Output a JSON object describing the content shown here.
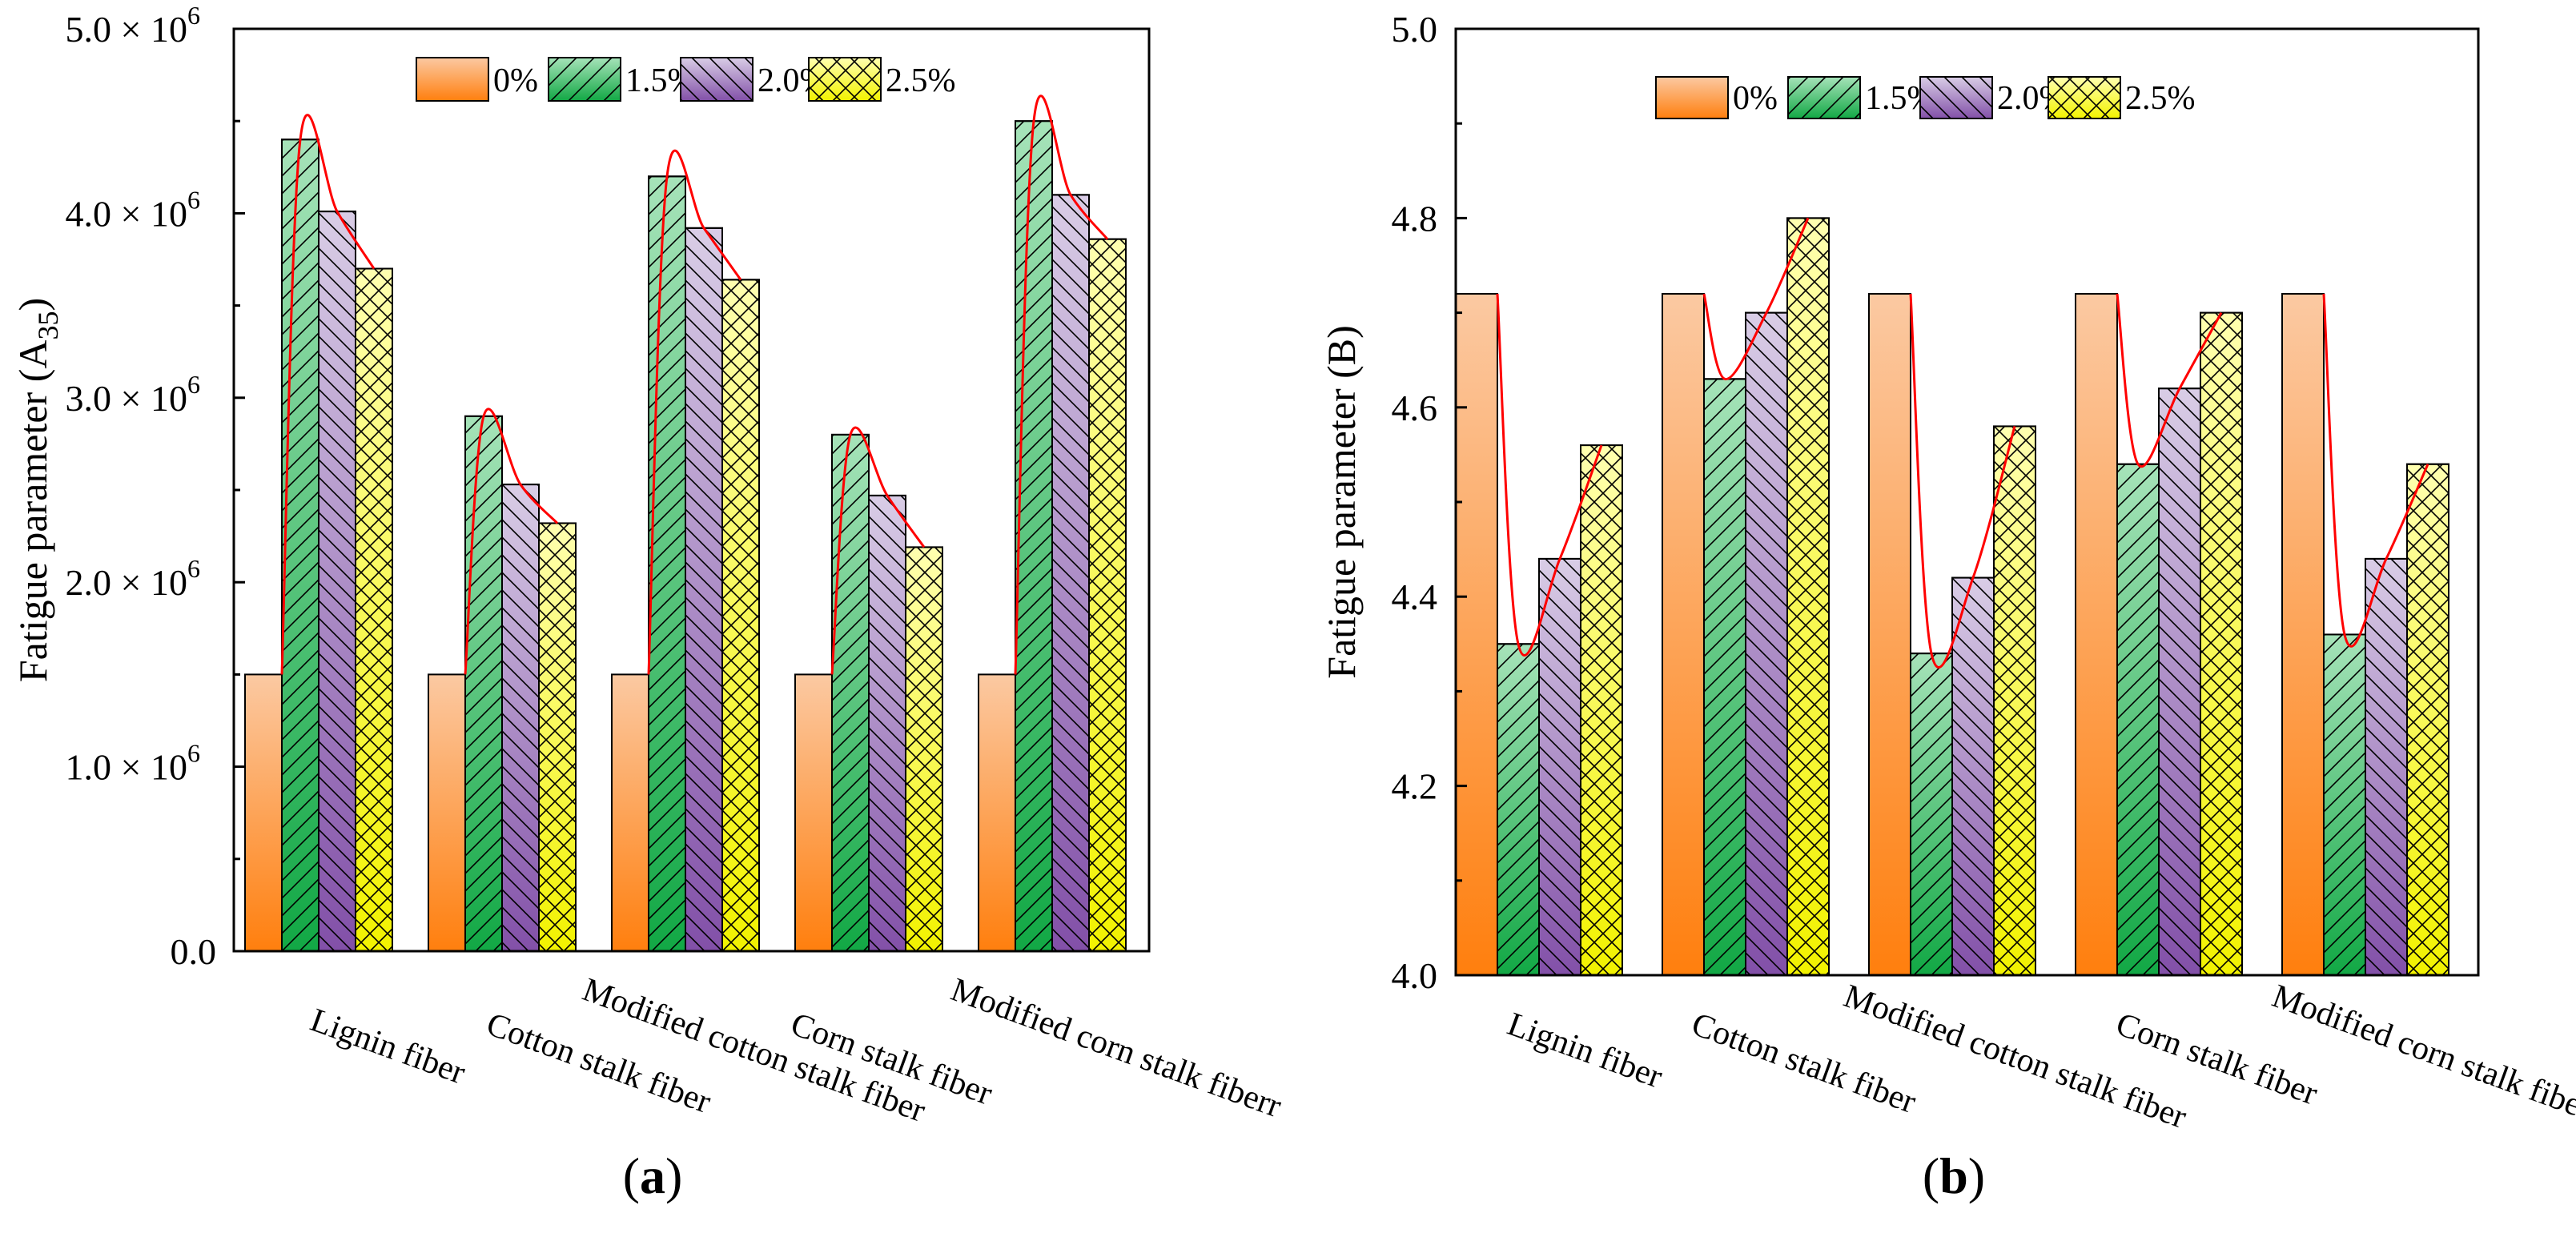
{
  "chart_data": [
    {
      "type": "bar",
      "panel_label": "(a)",
      "panel_letter": "a",
      "ylabel": "Fatigue parameter (A35)",
      "ylabel_main": "Fatigue parameter (A",
      "ylabel_sub": "35",
      "ylabel_close": ")",
      "ylim": [
        0,
        5000000
      ],
      "yticks": [
        {
          "value": 0,
          "label": "0.0"
        },
        {
          "value": 1000000,
          "label": "1.0 × 10",
          "exp": "6"
        },
        {
          "value": 2000000,
          "label": "2.0 × 10",
          "exp": "6"
        },
        {
          "value": 3000000,
          "label": "3.0 × 10",
          "exp": "6"
        },
        {
          "value": 4000000,
          "label": "4.0 × 10",
          "exp": "6"
        },
        {
          "value": 5000000,
          "label": "5.0 × 10",
          "exp": "6"
        }
      ],
      "categories": [
        "Lignin fiber",
        "Cotton stalk fiber",
        "Modified cotton stalk fiber",
        "Corn stalk fiber",
        "Modified corn stalk fiberr"
      ],
      "series": [
        {
          "name": "0%",
          "values": [
            1500000,
            1500000,
            1500000,
            1500000,
            1500000
          ]
        },
        {
          "name": "1.5%",
          "values": [
            4400000,
            2900000,
            4200000,
            2800000,
            4500000
          ]
        },
        {
          "name": "2.0%",
          "values": [
            4010000,
            2530000,
            3920000,
            2470000,
            4100000
          ]
        },
        {
          "name": "2.5%",
          "values": [
            3700000,
            2320000,
            3640000,
            2190000,
            3860000
          ]
        }
      ],
      "legend": [
        "0%",
        "1.5%",
        "2.0%",
        "2.5%"
      ],
      "legend_position": "top-right",
      "trend_line": "smooth red curve through bar tops per category",
      "grid": false
    },
    {
      "type": "bar",
      "panel_label": "(b)",
      "panel_letter": "b",
      "ylabel": "Fatigue parameter (B)",
      "ylim": [
        4.0,
        5.0
      ],
      "yticks": [
        {
          "value": 4.0,
          "label": "4.0"
        },
        {
          "value": 4.2,
          "label": "4.2"
        },
        {
          "value": 4.4,
          "label": "4.4"
        },
        {
          "value": 4.6,
          "label": "4.6"
        },
        {
          "value": 4.8,
          "label": "4.8"
        },
        {
          "value": 5.0,
          "label": "5.0"
        }
      ],
      "categories": [
        "Lignin fiber",
        "Cotton stalk fiber",
        "Modified cotton stalk fiber",
        "Corn stalk fiber",
        "Modified corn stalk fiberr"
      ],
      "series": [
        {
          "name": "0%",
          "values": [
            4.72,
            4.72,
            4.72,
            4.72,
            4.72
          ]
        },
        {
          "name": "1.5%",
          "values": [
            4.35,
            4.63,
            4.34,
            4.54,
            4.36
          ]
        },
        {
          "name": "2.0%",
          "values": [
            4.44,
            4.7,
            4.42,
            4.62,
            4.44
          ]
        },
        {
          "name": "2.5%",
          "values": [
            4.56,
            4.8,
            4.58,
            4.7,
            4.54
          ]
        }
      ],
      "legend": [
        "0%",
        "1.5%",
        "2.0%",
        "2.5%"
      ],
      "legend_position": "top-right",
      "trend_line": "smooth red curve through bar tops per category",
      "grid": false
    }
  ],
  "colors": {
    "s0_top": "#FBC9A2",
    "s0_bottom": "#FF7F0E",
    "s1_top": "#A6E3B9",
    "s1_bottom": "#12A845",
    "s2_top": "#D9CDE6",
    "s2_bottom": "#8250A8",
    "s3_top": "#FFFFB0",
    "s3_bottom": "#F2F200",
    "trend": "#FF0000"
  }
}
